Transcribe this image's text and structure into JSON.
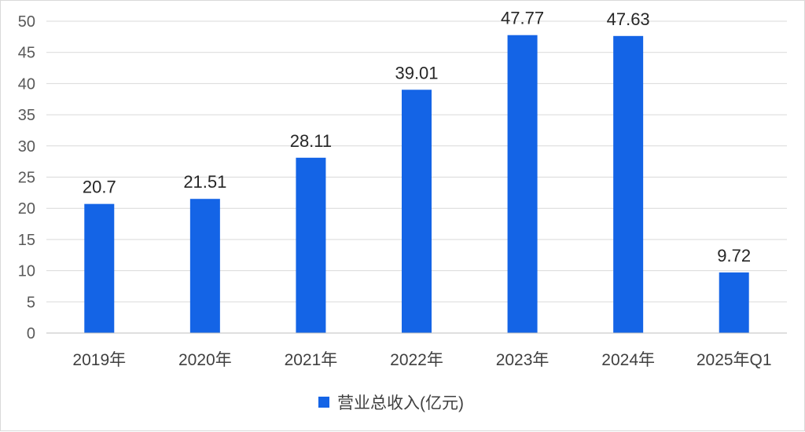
{
  "chart_data": {
    "type": "bar",
    "categories": [
      "2019年",
      "2020年",
      "2021年",
      "2022年",
      "2023年",
      "2024年",
      "2025年Q1"
    ],
    "series": [
      {
        "name": "营业总收入(亿元)",
        "values": [
          20.7,
          21.51,
          28.11,
          39.01,
          47.77,
          47.63,
          9.72
        ]
      }
    ],
    "data_labels": [
      "20.7",
      "21.51",
      "28.11",
      "39.01",
      "47.77",
      "47.63",
      "9.72"
    ],
    "ylim": [
      0,
      50
    ],
    "yticks": [
      0,
      5,
      10,
      15,
      20,
      25,
      30,
      35,
      40,
      45,
      50
    ],
    "grid": true,
    "legend_position": "bottom",
    "colors": {
      "bar": "#1464E6",
      "grid": "#d9d9d9",
      "axis": "#bfbfbf"
    }
  }
}
